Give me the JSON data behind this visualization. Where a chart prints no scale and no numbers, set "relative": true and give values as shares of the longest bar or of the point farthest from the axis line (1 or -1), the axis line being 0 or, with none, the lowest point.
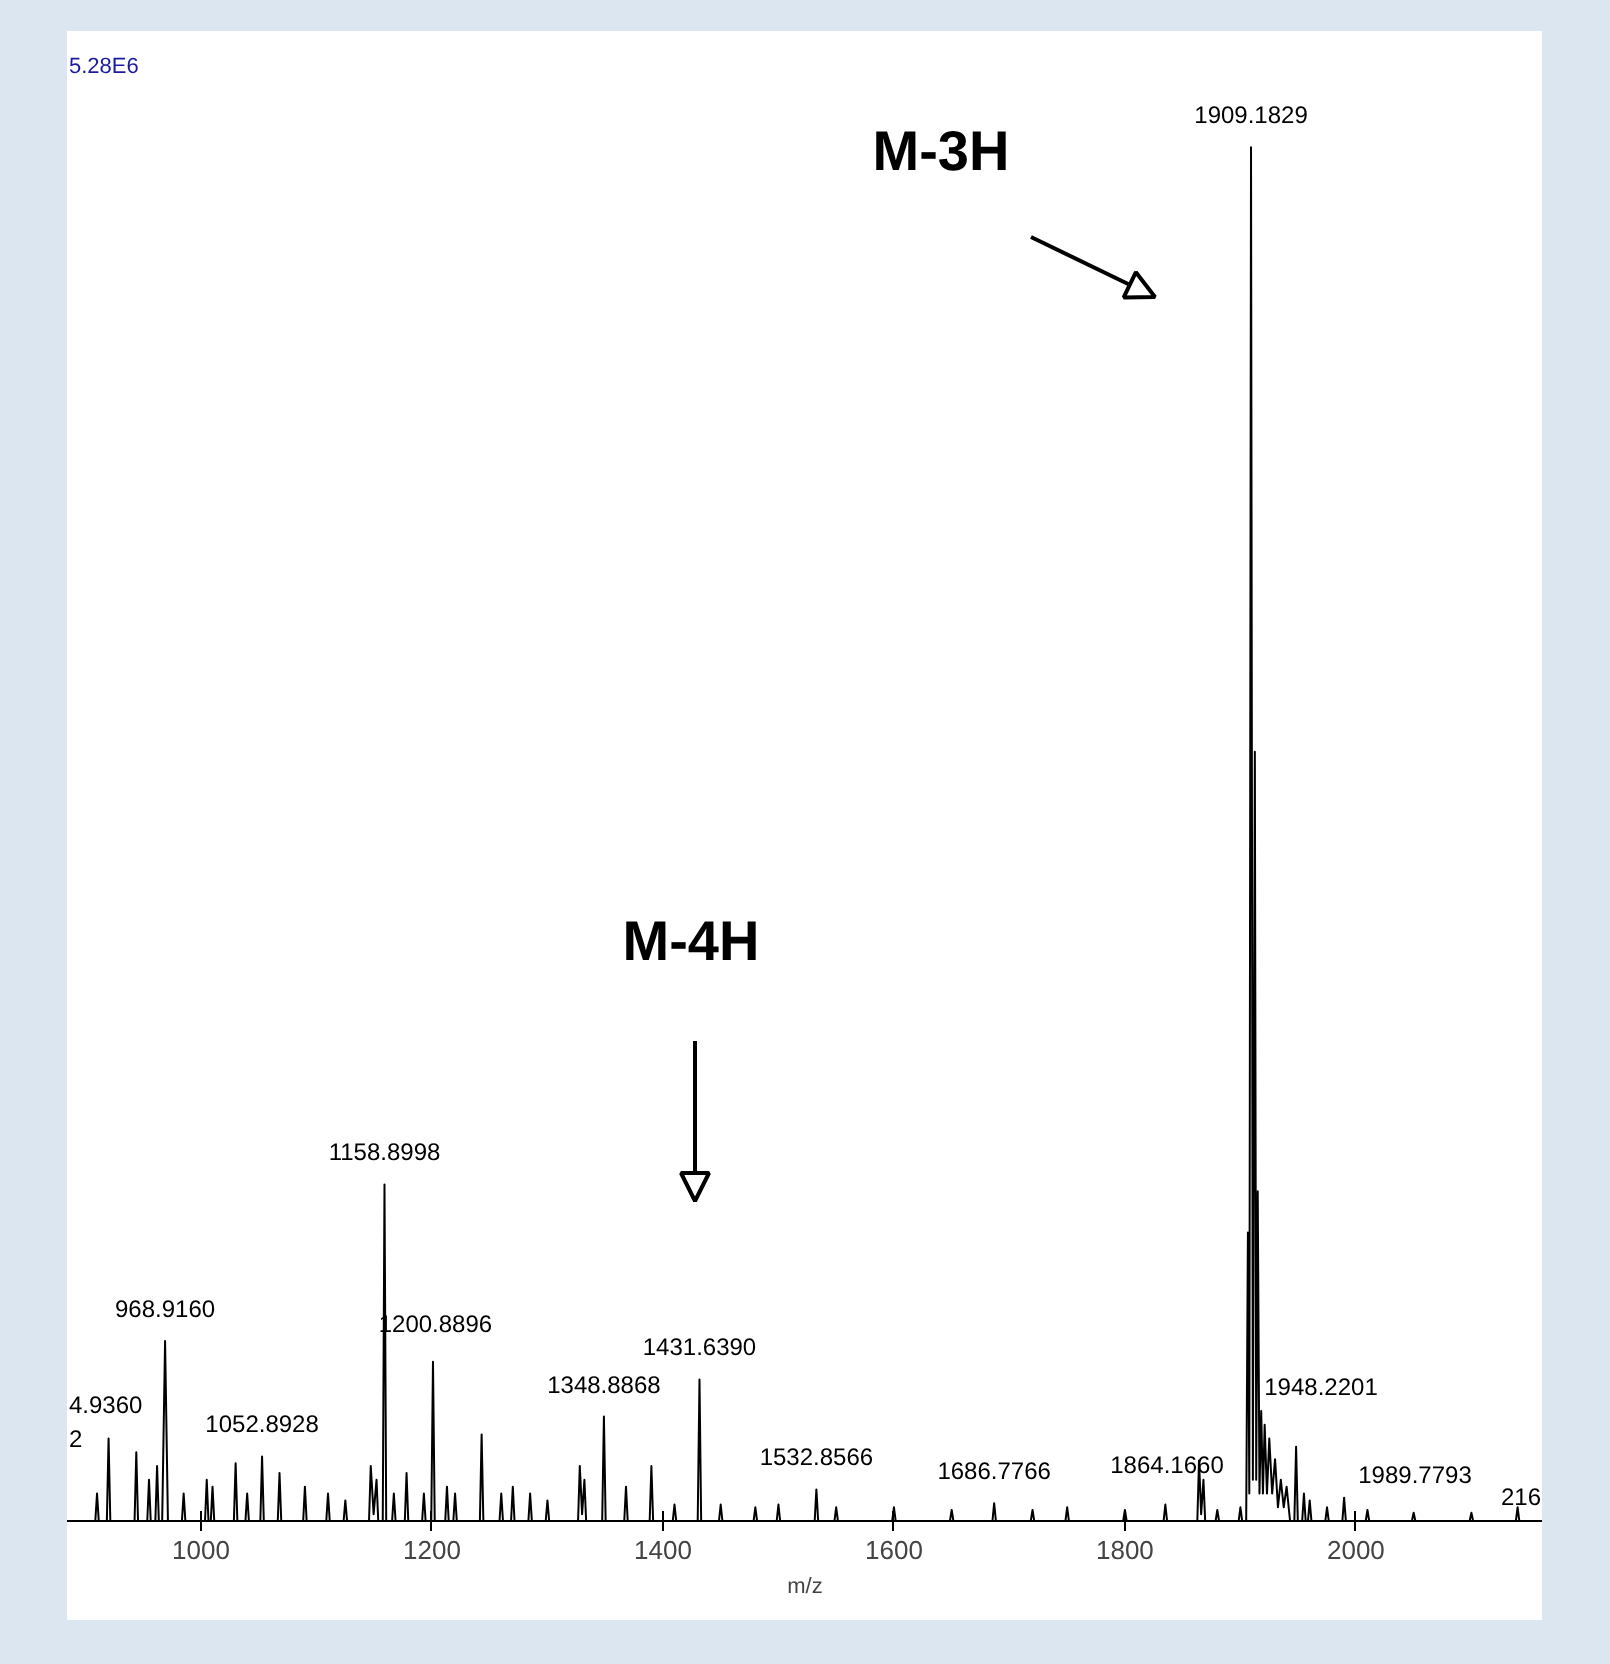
{
  "chart_data": {
    "type": "line",
    "relative": true,
    "color": "#000000",
    "xlabel": "m/z",
    "xlim": [
      884,
      2162
    ],
    "xticks": [
      1000,
      1200,
      1400,
      1600,
      1800,
      2000
    ],
    "annotations": [
      "M-3H",
      "M-4H",
      "5.28E6",
      "1864.1660",
      "1948.2201",
      "1989.7793",
      "4.9360",
      "2",
      "216",
      {
        "text": "1909.1829",
        "x": 1909.183,
        "y": 1.0
      },
      {
        "text": "1158.8998",
        "x": 1158.9,
        "y": 0.245
      },
      {
        "text": "968.9160",
        "x": 968.916,
        "y": 0.131
      },
      {
        "text": "1200.8896",
        "x": 1203,
        "y": 0.12
      },
      {
        "text": "1431.6390",
        "x": 1431.639,
        "y": 0.103
      },
      {
        "text": "1348.8868",
        "x": 1348.887,
        "y": 0.076
      },
      {
        "text": "1052.8928",
        "x": 1052.893,
        "y": 0.047
      },
      {
        "text": "1532.8566",
        "x": 1532.857,
        "y": 0.023
      },
      {
        "text": "1686.7766",
        "x": 1686.777,
        "y": 0.013
      }
    ],
    "x": [
      884,
      908.5,
      910,
      911.5,
      918.5,
      920,
      921.5,
      942.5,
      944,
      945.5,
      953.5,
      955,
      956.5,
      960.5,
      962,
      963.5,
      966.4,
      968.916,
      971.4,
      983.5,
      985,
      986.5,
      1003.5,
      1005,
      1006.5,
      1008.5,
      1010,
      1011.5,
      1028.5,
      1030,
      1031.5,
      1038.5,
      1040,
      1041.5,
      1051.4,
      1052.893,
      1054.4,
      1066.5,
      1068,
      1069.5,
      1088.5,
      1090,
      1091.5,
      1108.5,
      1110,
      1111.5,
      1123.5,
      1125,
      1126.5,
      1145.5,
      1147,
      1149.5,
      1152,
      1153.5,
      1157.4,
      1158.9,
      1160.4,
      1165.5,
      1167,
      1168.5,
      1176.5,
      1178,
      1179.5,
      1191.5,
      1193,
      1194.5,
      1199.4,
      1200.89,
      1202.4,
      1211.5,
      1213,
      1214.5,
      1218.5,
      1220,
      1221.5,
      1241.5,
      1243,
      1244.5,
      1258.5,
      1260,
      1261.5,
      1268.5,
      1270,
      1271.5,
      1283.5,
      1285,
      1286.5,
      1298.5,
      1300,
      1301.5,
      1326.5,
      1328,
      1330,
      1332,
      1333.5,
      1347.4,
      1348.887,
      1350.4,
      1366.5,
      1368,
      1369.5,
      1388.5,
      1390,
      1391.5,
      1408.5,
      1410,
      1411.5,
      1430.1,
      1431.639,
      1433.1,
      1448.5,
      1450,
      1451.5,
      1478.5,
      1480,
      1481.5,
      1498.5,
      1500,
      1501.5,
      1531.4,
      1532.857,
      1534.4,
      1548.5,
      1550,
      1551.5,
      1598.5,
      1600,
      1601.5,
      1648.5,
      1650,
      1651.5,
      1685.3,
      1686.777,
      1688.3,
      1718.5,
      1720,
      1721.5,
      1748.5,
      1750,
      1751.5,
      1798.5,
      1800,
      1801.5,
      1833.5,
      1835,
      1836.5,
      1862.7,
      1864.166,
      1866,
      1868,
      1869.5,
      1878.5,
      1880,
      1881.5,
      1898.5,
      1900,
      1901.5,
      1905,
      1906.5,
      1907.7,
      1909.183,
      1910.8,
      1912.5,
      1913.7,
      1915,
      1916.5,
      1918,
      1919.5,
      1921,
      1923,
      1925,
      1927.5,
      1930,
      1932.5,
      1935,
      1937.5,
      1940,
      1943,
      1946.7,
      1948.22,
      1949.7,
      1953.5,
      1955,
      1956.5,
      1958.5,
      1960,
      1961.5,
      1973.5,
      1975,
      1976.5,
      1988.3,
      1989.779,
      1991.3,
      2008.5,
      2010,
      2011.5,
      2048.5,
      2050,
      2051.5,
      2098.5,
      2100,
      2101.5,
      2138.5,
      2140,
      2141.5,
      2162
    ],
    "values": [
      0,
      0,
      0.02,
      0,
      0,
      0.06,
      0,
      0,
      0.05,
      0,
      0,
      0.03,
      0,
      0,
      0.04,
      0,
      0,
      0.131,
      0,
      0,
      0.02,
      0,
      0,
      0.03,
      0,
      0,
      0.025,
      0,
      0,
      0.042,
      0,
      0,
      0.02,
      0,
      0,
      0.047,
      0,
      0,
      0.035,
      0,
      0,
      0.025,
      0,
      0,
      0.02,
      0,
      0,
      0.015,
      0,
      0,
      0.04,
      0.005,
      0.03,
      0,
      0,
      0.245,
      0,
      0,
      0.02,
      0,
      0,
      0.035,
      0,
      0,
      0.02,
      0,
      0,
      0.116,
      0,
      0,
      0.025,
      0,
      0,
      0.02,
      0,
      0,
      0.063,
      0,
      0,
      0.02,
      0,
      0,
      0.025,
      0,
      0,
      0.02,
      0,
      0,
      0.015,
      0,
      0,
      0.04,
      0.005,
      0.03,
      0,
      0,
      0.076,
      0,
      0,
      0.025,
      0,
      0,
      0.04,
      0,
      0,
      0.012,
      0,
      0,
      0.103,
      0,
      0,
      0.012,
      0,
      0,
      0.01,
      0,
      0,
      0.012,
      0,
      0,
      0.023,
      0,
      0,
      0.01,
      0,
      0,
      0.01,
      0,
      0,
      0.008,
      0,
      0,
      0.013,
      0,
      0,
      0.008,
      0,
      0,
      0.01,
      0,
      0,
      0.008,
      0,
      0,
      0.012,
      0,
      0,
      0.044,
      0.005,
      0.03,
      0,
      0,
      0.008,
      0,
      0,
      0.01,
      0,
      0,
      0.21,
      0.02,
      1.0,
      0.03,
      0.56,
      0.03,
      0.24,
      0.02,
      0.08,
      0.02,
      0.07,
      0.02,
      0.06,
      0.02,
      0.045,
      0.01,
      0.03,
      0.01,
      0.025,
      0,
      0,
      0.054,
      0,
      0,
      0.02,
      0,
      0,
      0.015,
      0,
      0,
      0.01,
      0,
      0,
      0.017,
      0,
      0,
      0.008,
      0,
      0,
      0.006,
      0,
      0,
      0.006,
      0,
      0,
      0.01,
      0,
      0
    ]
  }
}
